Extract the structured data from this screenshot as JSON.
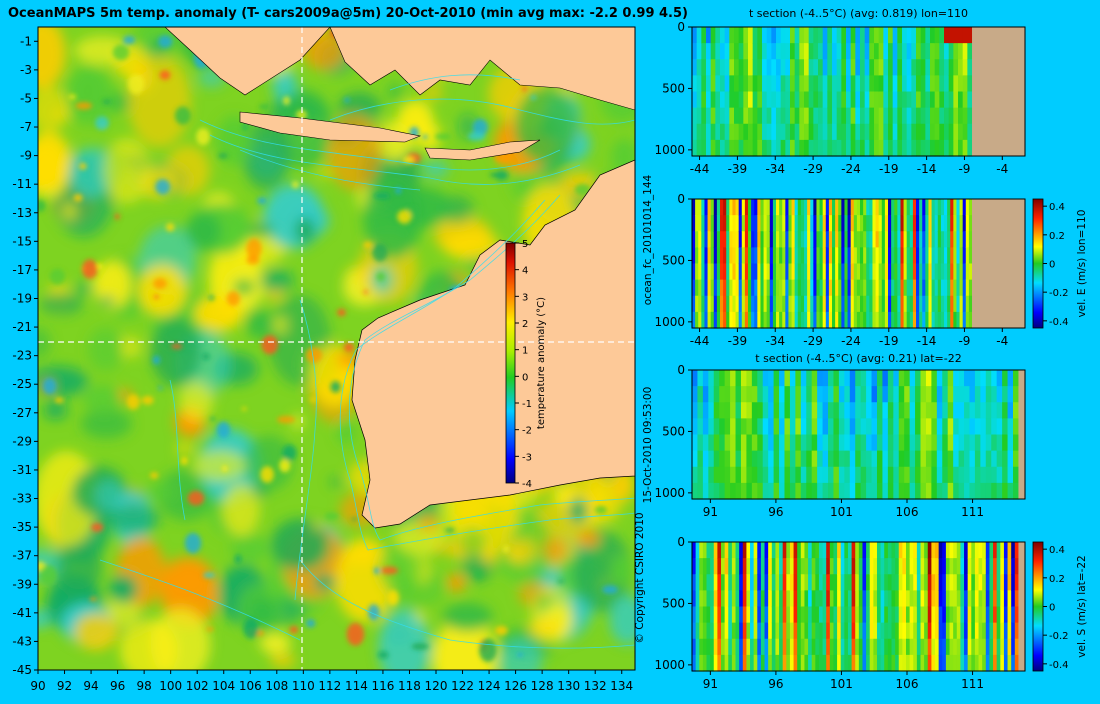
{
  "title": "OceanMAPS 5m temp. anomaly (T- cars2009a@5m) 20-Oct-2010 (min avg max: -2.2 0.99 4.5)",
  "vertical_labels": {
    "run": "ocean_fc_20101014_144",
    "timestamp": "15-Oct-2010 09:53:00",
    "copyright": "© Copyright CSIRO 2010"
  },
  "colors": {
    "background": "#00ccff",
    "land": "#fdc998",
    "section_land": "#c8aa88",
    "contour": "#33ddee"
  },
  "chart_data": [
    {
      "type": "heatmap",
      "title": "OceanMAPS 5m temp. anomaly (T- cars2009a@5m) 20-Oct-2010 (min avg max: -2.2 0.99 4.5)",
      "x_ticks": [
        90,
        92,
        94,
        96,
        98,
        100,
        102,
        104,
        106,
        108,
        110,
        112,
        114,
        116,
        118,
        120,
        122,
        124,
        126,
        128,
        130,
        132,
        134
      ],
      "y_ticks": [
        -1,
        -3,
        -5,
        -7,
        -9,
        -11,
        -13,
        -15,
        -17,
        -19,
        -21,
        -23,
        -25,
        -27,
        -29,
        -31,
        -33,
        -35,
        -37,
        -39,
        -41,
        -43,
        -45
      ],
      "xlim": [
        90,
        135
      ],
      "ylim": [
        -45,
        0
      ],
      "crosshair": {
        "lon": 110,
        "lat": -22
      },
      "colorbar": {
        "label": "temperature anomaly (°C)",
        "ticks": [
          5,
          4,
          3,
          2,
          1,
          0,
          -1,
          -2,
          -3,
          -4
        ],
        "range": [
          -4,
          5
        ]
      }
    },
    {
      "type": "heatmap",
      "title": "t section (-4..5°C) (avg: 0.819) lon=110",
      "x_ticks": [
        -44,
        -39,
        -34,
        -29,
        -24,
        -19,
        -14,
        -9,
        -4
      ],
      "y_ticks": [
        0,
        500,
        1000
      ],
      "xlim": [
        -45,
        -1
      ],
      "ylim": [
        1050,
        0
      ]
    },
    {
      "type": "heatmap",
      "title": "",
      "x_ticks": [
        -44,
        -39,
        -34,
        -29,
        -24,
        -19,
        -14,
        -9,
        -4
      ],
      "y_ticks": [
        0,
        500,
        1000
      ],
      "xlim": [
        -45,
        -1
      ],
      "ylim": [
        1050,
        0
      ],
      "colorbar": {
        "label": "vel. E (m/s) lon=110",
        "ticks": [
          "0.4",
          "0.2",
          "0",
          "-0.2",
          "-0.4"
        ],
        "range": [
          -0.45,
          0.45
        ]
      }
    },
    {
      "type": "heatmap",
      "title": "t section (-4..5°C) (avg: 0.21) lat=-22",
      "x_ticks": [
        91,
        96,
        101,
        106,
        111
      ],
      "y_ticks": [
        0,
        500,
        1000
      ],
      "xlim": [
        89.6,
        115
      ],
      "ylim": [
        1050,
        0
      ]
    },
    {
      "type": "heatmap",
      "title": "",
      "x_ticks": [
        91,
        96,
        101,
        106,
        111
      ],
      "y_ticks": [
        0,
        500,
        1000
      ],
      "xlim": [
        89.6,
        115
      ],
      "ylim": [
        1050,
        0
      ],
      "colorbar": {
        "label": "vel. S (m/s) lat=-22",
        "ticks": [
          "0.4",
          "0.2",
          "0",
          "-0.2",
          "-0.4"
        ],
        "range": [
          -0.45,
          0.45
        ]
      }
    }
  ]
}
